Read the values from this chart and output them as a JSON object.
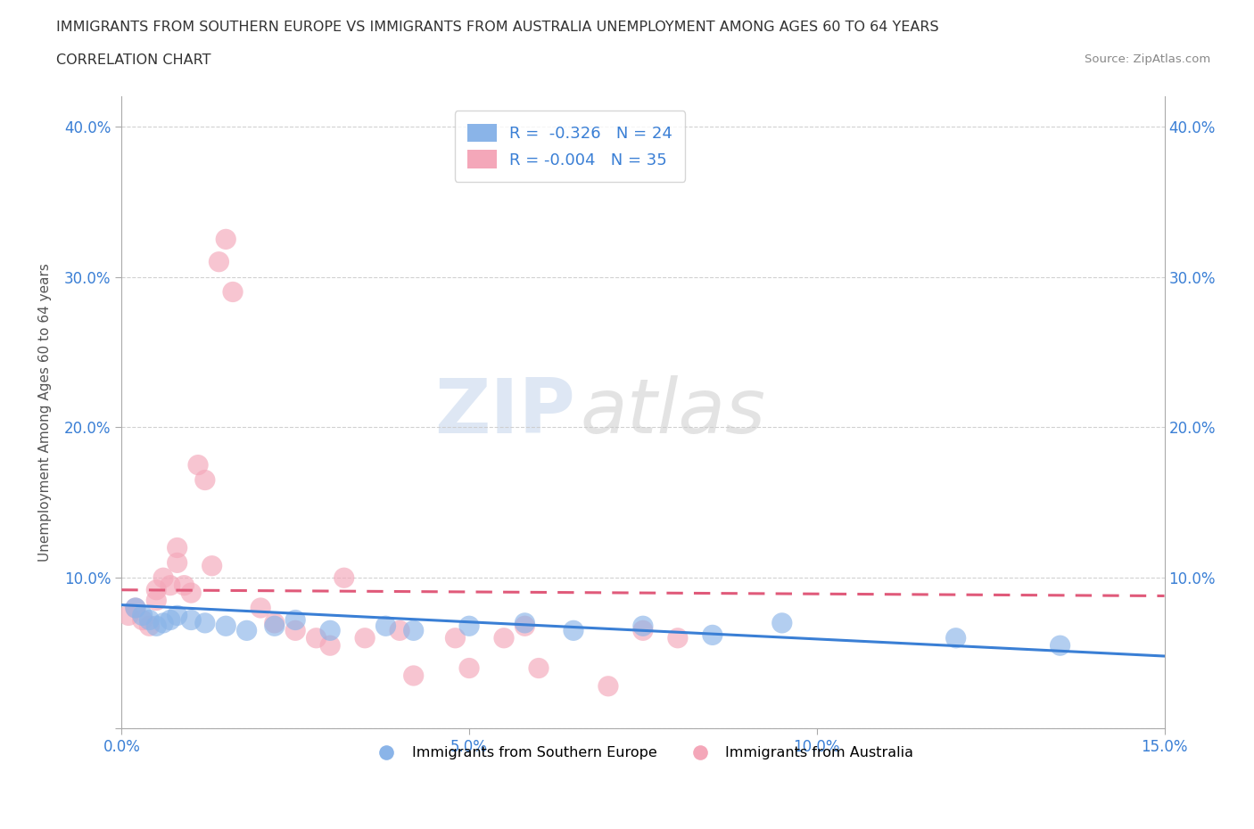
{
  "title_line1": "IMMIGRANTS FROM SOUTHERN EUROPE VS IMMIGRANTS FROM AUSTRALIA UNEMPLOYMENT AMONG AGES 60 TO 64 YEARS",
  "title_line2": "CORRELATION CHART",
  "source": "Source: ZipAtlas.com",
  "ylabel": "Unemployment Among Ages 60 to 64 years",
  "xlim": [
    0.0,
    0.15
  ],
  "ylim": [
    0.0,
    0.42
  ],
  "xticks": [
    0.0,
    0.05,
    0.1,
    0.15
  ],
  "xtick_labels": [
    "0.0%",
    "5.0%",
    "10.0%",
    "15.0%"
  ],
  "yticks": [
    0.0,
    0.1,
    0.2,
    0.3,
    0.4
  ],
  "ytick_labels": [
    "",
    "10.0%",
    "20.0%",
    "30.0%",
    "40.0%"
  ],
  "blue_color": "#8ab4e8",
  "pink_color": "#f4a7b9",
  "blue_line_color": "#3a7fd5",
  "pink_line_color": "#e05a7a",
  "R_blue": -0.326,
  "N_blue": 24,
  "R_pink": -0.004,
  "N_pink": 35,
  "legend_label_blue": "Immigrants from Southern Europe",
  "legend_label_pink": "Immigrants from Australia",
  "watermark_zip": "ZIP",
  "watermark_atlas": "atlas",
  "blue_scatter_x": [
    0.002,
    0.003,
    0.004,
    0.005,
    0.006,
    0.007,
    0.008,
    0.01,
    0.012,
    0.015,
    0.018,
    0.022,
    0.025,
    0.03,
    0.038,
    0.042,
    0.05,
    0.058,
    0.065,
    0.075,
    0.085,
    0.095,
    0.12,
    0.135
  ],
  "blue_scatter_y": [
    0.08,
    0.075,
    0.072,
    0.068,
    0.07,
    0.072,
    0.075,
    0.072,
    0.07,
    0.068,
    0.065,
    0.068,
    0.072,
    0.065,
    0.068,
    0.065,
    0.068,
    0.07,
    0.065,
    0.068,
    0.062,
    0.07,
    0.06,
    0.055
  ],
  "pink_scatter_x": [
    0.001,
    0.002,
    0.003,
    0.004,
    0.005,
    0.005,
    0.006,
    0.007,
    0.008,
    0.008,
    0.009,
    0.01,
    0.011,
    0.012,
    0.013,
    0.014,
    0.015,
    0.016,
    0.02,
    0.022,
    0.025,
    0.028,
    0.03,
    0.032,
    0.035,
    0.04,
    0.042,
    0.048,
    0.05,
    0.055,
    0.058,
    0.06,
    0.07,
    0.075,
    0.08
  ],
  "pink_scatter_y": [
    0.075,
    0.08,
    0.072,
    0.068,
    0.085,
    0.092,
    0.1,
    0.095,
    0.11,
    0.12,
    0.095,
    0.09,
    0.175,
    0.165,
    0.108,
    0.31,
    0.325,
    0.29,
    0.08,
    0.07,
    0.065,
    0.06,
    0.055,
    0.1,
    0.06,
    0.065,
    0.035,
    0.06,
    0.04,
    0.06,
    0.068,
    0.04,
    0.028,
    0.065,
    0.06
  ],
  "blue_trendline_x": [
    0.0,
    0.15
  ],
  "blue_trendline_y": [
    0.082,
    0.048
  ],
  "pink_trendline_x": [
    0.0,
    0.15
  ],
  "pink_trendline_y": [
    0.092,
    0.088
  ]
}
